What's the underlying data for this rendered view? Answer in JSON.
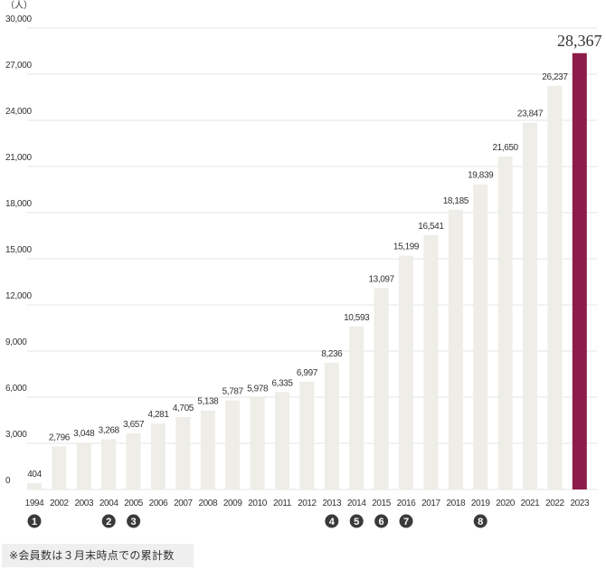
{
  "chart_data": {
    "type": "bar",
    "unit_label": "（人）",
    "categories": [
      "1994",
      "2002",
      "2003",
      "2004",
      "2005",
      "2006",
      "2007",
      "2008",
      "2009",
      "2010",
      "2011",
      "2012",
      "2013",
      "2014",
      "2015",
      "2016",
      "2017",
      "2018",
      "2019",
      "2020",
      "2021",
      "2022",
      "2023"
    ],
    "values": [
      404,
      2796,
      3048,
      3268,
      3657,
      4281,
      4705,
      5138,
      5787,
      5978,
      6335,
      6997,
      8236,
      10593,
      13097,
      15199,
      16541,
      18185,
      19839,
      21650,
      23847,
      26237,
      28367
    ],
    "data_labels": [
      "404",
      "2,796",
      "3,048",
      "3,268",
      "3,657",
      "4,281",
      "4,705",
      "5,138",
      "5,787",
      "5,978",
      "6,335",
      "6,997",
      "8,236",
      "10,593",
      "13,097",
      "15,199",
      "16,541",
      "18,185",
      "19,839",
      "21,650",
      "23,847",
      "26,237",
      "28,367"
    ],
    "ylim": [
      0,
      30000
    ],
    "y_ticks": [
      0,
      3000,
      6000,
      9000,
      12000,
      15000,
      18000,
      21000,
      24000,
      27000,
      30000
    ],
    "y_tick_labels": [
      "0",
      "3,000",
      "6,000",
      "9,000",
      "12,000",
      "15,000",
      "18,000",
      "21,000",
      "24,000",
      "27,000",
      "30,000"
    ],
    "grid": true,
    "colors": {
      "bar": "#eeede7",
      "highlight": "#8c1d4a",
      "grid": "#e6e6e6",
      "marker": "#3a3a3a"
    },
    "highlight_index": 22,
    "markers": [
      {
        "category": "1994",
        "label": "1"
      },
      {
        "category": "2004",
        "label": "2"
      },
      {
        "category": "2005",
        "label": "3"
      },
      {
        "category": "2013",
        "label": "4"
      },
      {
        "category": "2014",
        "label": "5"
      },
      {
        "category": "2015",
        "label": "6"
      },
      {
        "category": "2016",
        "label": "7"
      },
      {
        "category": "2019",
        "label": "8"
      }
    ]
  },
  "note": "※会員数は３月末時点での累計数"
}
